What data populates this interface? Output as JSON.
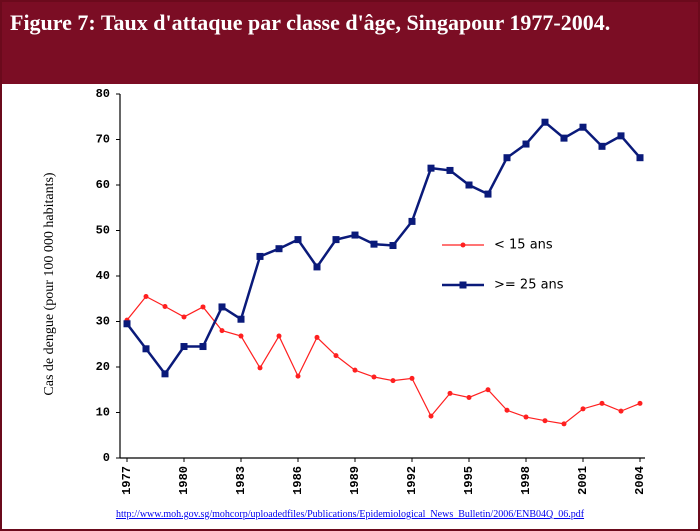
{
  "chart_data": {
    "type": "line",
    "title": "Figure 7: Taux d'attaque par classe d'âge, Singapour 1977-2004.",
    "ylabel": "Cas de dengue (pour 100 000 habitants)",
    "x": [
      1977,
      1978,
      1979,
      1980,
      1981,
      1982,
      1983,
      1984,
      1985,
      1986,
      1987,
      1988,
      1989,
      1990,
      1991,
      1992,
      1993,
      1994,
      1995,
      1996,
      1997,
      1998,
      1999,
      2000,
      2001,
      2002,
      2003,
      2004
    ],
    "series": [
      {
        "name": "< 15 ans",
        "color": "#ff2020",
        "marker": "circle",
        "values": [
          30.3,
          35.5,
          33.3,
          31,
          33.2,
          28,
          26.8,
          19.8,
          26.8,
          18,
          26.5,
          22.5,
          19.3,
          17.8,
          17,
          17.5,
          9.2,
          14.2,
          13.3,
          15,
          10.5,
          9,
          8.2,
          7.5,
          10.8,
          12,
          10.3,
          12
        ]
      },
      {
        "name": ">= 25 ans",
        "color": "#0a1a7a",
        "marker": "square",
        "values": [
          29.5,
          24,
          18.5,
          24.5,
          24.5,
          33.2,
          30.5,
          44.3,
          46,
          48,
          42,
          48,
          49,
          47,
          46.7,
          52,
          63.7,
          63.2,
          60,
          58,
          66,
          69,
          73.8,
          70.3,
          72.7,
          68.5,
          70.8,
          66
        ]
      }
    ],
    "xlim": [
      1977,
      2004
    ],
    "xticks": [
      1977,
      1980,
      1983,
      1986,
      1989,
      1992,
      1995,
      1998,
      2001,
      2004
    ],
    "ylim": [
      0,
      80
    ],
    "yticks": [
      0,
      10,
      20,
      30,
      40,
      50,
      60,
      70,
      80
    ],
    "grid": false,
    "legend": "center-right",
    "source": "http://www.moh.gov.sg/mohcorp/uploadedfiles/Publications/Epidemiological_News_Bulletin/2006/ENB04Q_06.pdf"
  }
}
